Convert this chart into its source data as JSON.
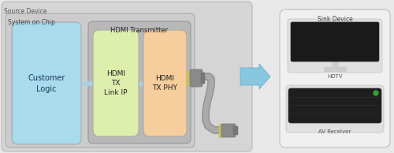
{
  "bg_color": "#e8e8e8",
  "source_device_label": "Source Device",
  "soc_label": "System on Chip",
  "hdmi_tx_label": "HDMI Transmitter",
  "customer_logic_label": "Customer\nLogic",
  "hdmi_tx_link_label": "HDMI\nTX\nLink IP",
  "hdmi_tx_phy_label": "HDMI\nTX PHY",
  "sink_device_label": "Sink Device",
  "hdtv_label": "HDTV",
  "av_receiver_label": "AV Receiver",
  "arrow_color": "#88c8df",
  "cable_color": "#909090",
  "connector_color": "#888888",
  "connector_tip_color": "#c8c870"
}
